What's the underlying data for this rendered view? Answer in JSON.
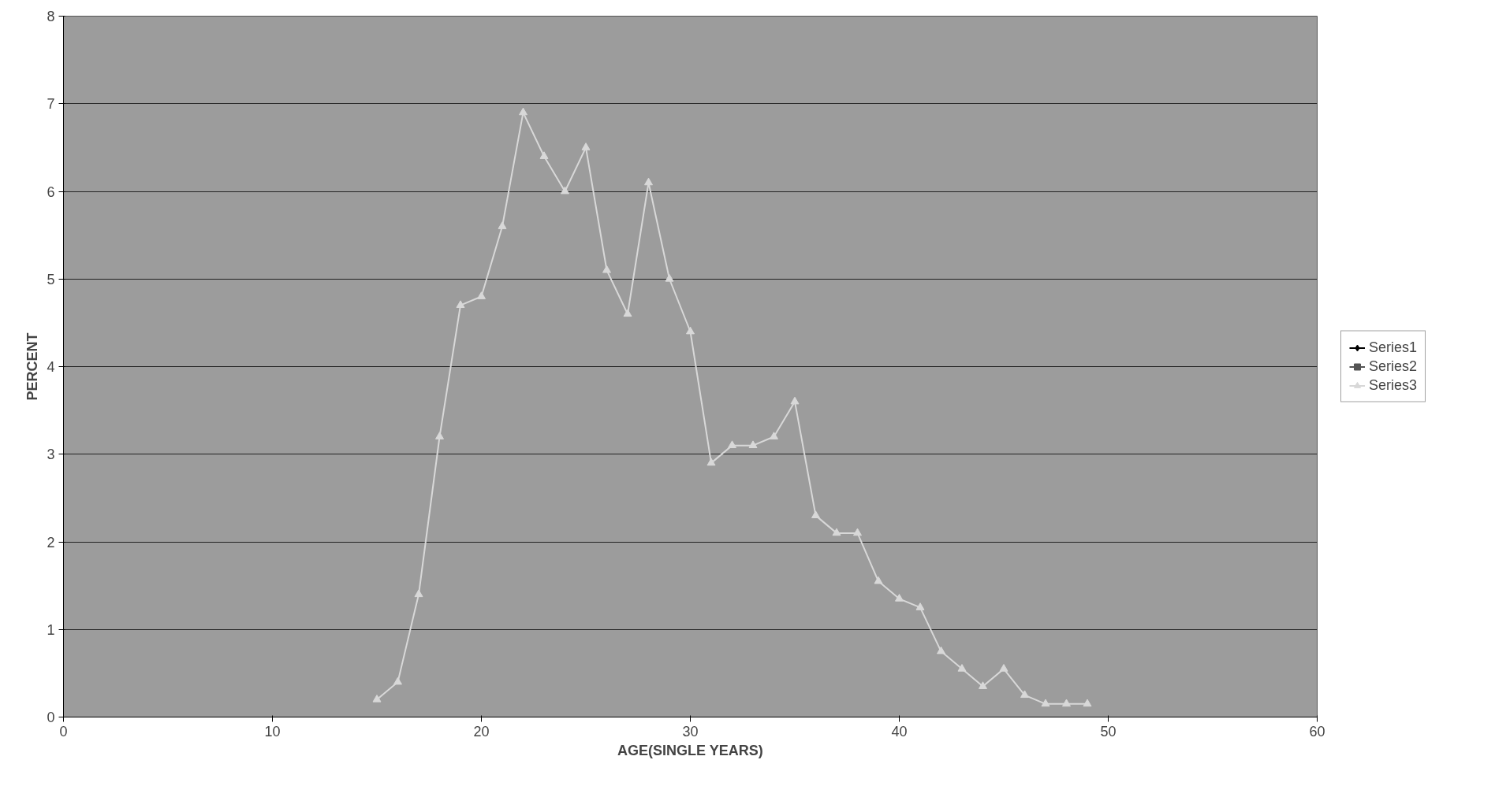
{
  "chart_data": {
    "type": "line",
    "xlabel": "AGE(SINGLE YEARS)",
    "ylabel": "PERCENT",
    "xlim": [
      0,
      60
    ],
    "xticks": [
      0,
      10,
      20,
      30,
      40,
      50,
      60
    ],
    "ylim": [
      0,
      8
    ],
    "yticks": [
      0,
      1,
      2,
      3,
      4,
      5,
      6,
      7,
      8
    ],
    "grid": "y",
    "legend": "right",
    "x": [
      15,
      16,
      17,
      18,
      19,
      20,
      21,
      22,
      23,
      24,
      25,
      26,
      27,
      28,
      29,
      30,
      31,
      32,
      33,
      34,
      35,
      36,
      37,
      38,
      39,
      40,
      41,
      42,
      43,
      44,
      45,
      46,
      47,
      48,
      49
    ],
    "series": [
      {
        "name": "Series1",
        "color": "#000000",
        "marker": "diamond",
        "values": [
          null,
          null,
          null,
          null,
          null,
          null,
          null,
          null,
          null,
          null,
          null,
          null,
          null,
          null,
          null,
          null,
          null,
          null,
          null,
          null,
          null,
          null,
          null,
          null,
          null,
          null,
          null,
          null,
          null,
          null,
          null,
          null,
          null,
          null,
          null
        ]
      },
      {
        "name": "Series2",
        "color": "#555555",
        "marker": "square",
        "values": [
          null,
          null,
          null,
          null,
          null,
          null,
          null,
          null,
          null,
          null,
          null,
          null,
          null,
          null,
          null,
          null,
          null,
          null,
          null,
          null,
          null,
          null,
          null,
          null,
          null,
          null,
          null,
          null,
          null,
          null,
          null,
          null,
          null,
          null,
          null
        ]
      },
      {
        "name": "Series3",
        "color": "#d8d8d8",
        "marker": "triangle",
        "values": [
          0.2,
          0.4,
          1.4,
          3.2,
          4.7,
          4.8,
          5.6,
          6.9,
          6.4,
          6.0,
          6.5,
          5.1,
          4.6,
          6.1,
          5.0,
          4.4,
          2.9,
          3.1,
          3.1,
          3.2,
          3.6,
          2.3,
          2.1,
          2.1,
          1.55,
          1.35,
          1.25,
          0.75,
          0.55,
          0.35,
          0.55,
          0.25,
          0.15,
          0.15,
          0.15
        ]
      }
    ]
  }
}
